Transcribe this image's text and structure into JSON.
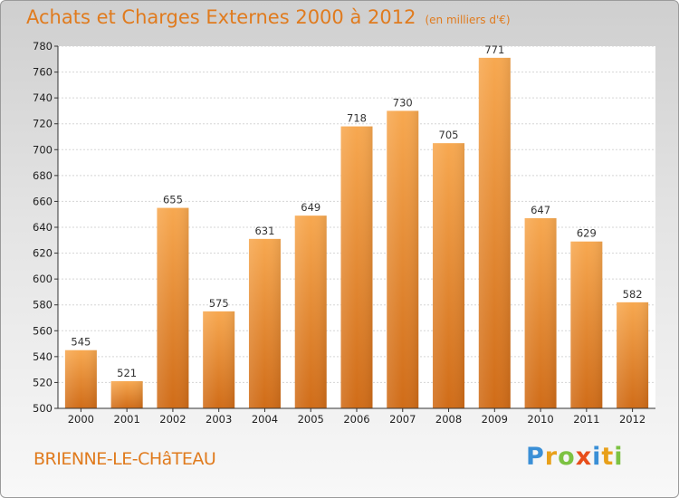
{
  "header": {
    "title": "Achats et Charges Externes 2000 à 2012",
    "unit": "(en milliers d'€)"
  },
  "footer": {
    "place": "BRIENNE-LE-CHâTEAU",
    "logo": "Proxiti"
  },
  "colors": {
    "accent": "#e07b1e",
    "bar_light": "#f5a44e",
    "bar_dark": "#d4711a"
  },
  "chart_data": {
    "type": "bar",
    "title": "Achats et Charges Externes 2000 à 2012",
    "subtitle": "(en milliers d'€)",
    "categories": [
      "2000",
      "2001",
      "2002",
      "2003",
      "2004",
      "2005",
      "2006",
      "2007",
      "2008",
      "2009",
      "2010",
      "2011",
      "2012"
    ],
    "values": [
      545,
      521,
      655,
      575,
      631,
      649,
      718,
      730,
      705,
      771,
      647,
      629,
      582
    ],
    "ylim": [
      500,
      780
    ],
    "yticks": [
      500,
      520,
      540,
      560,
      580,
      600,
      620,
      640,
      660,
      680,
      700,
      720,
      740,
      760,
      780
    ],
    "grid": true,
    "data_labels": true
  }
}
